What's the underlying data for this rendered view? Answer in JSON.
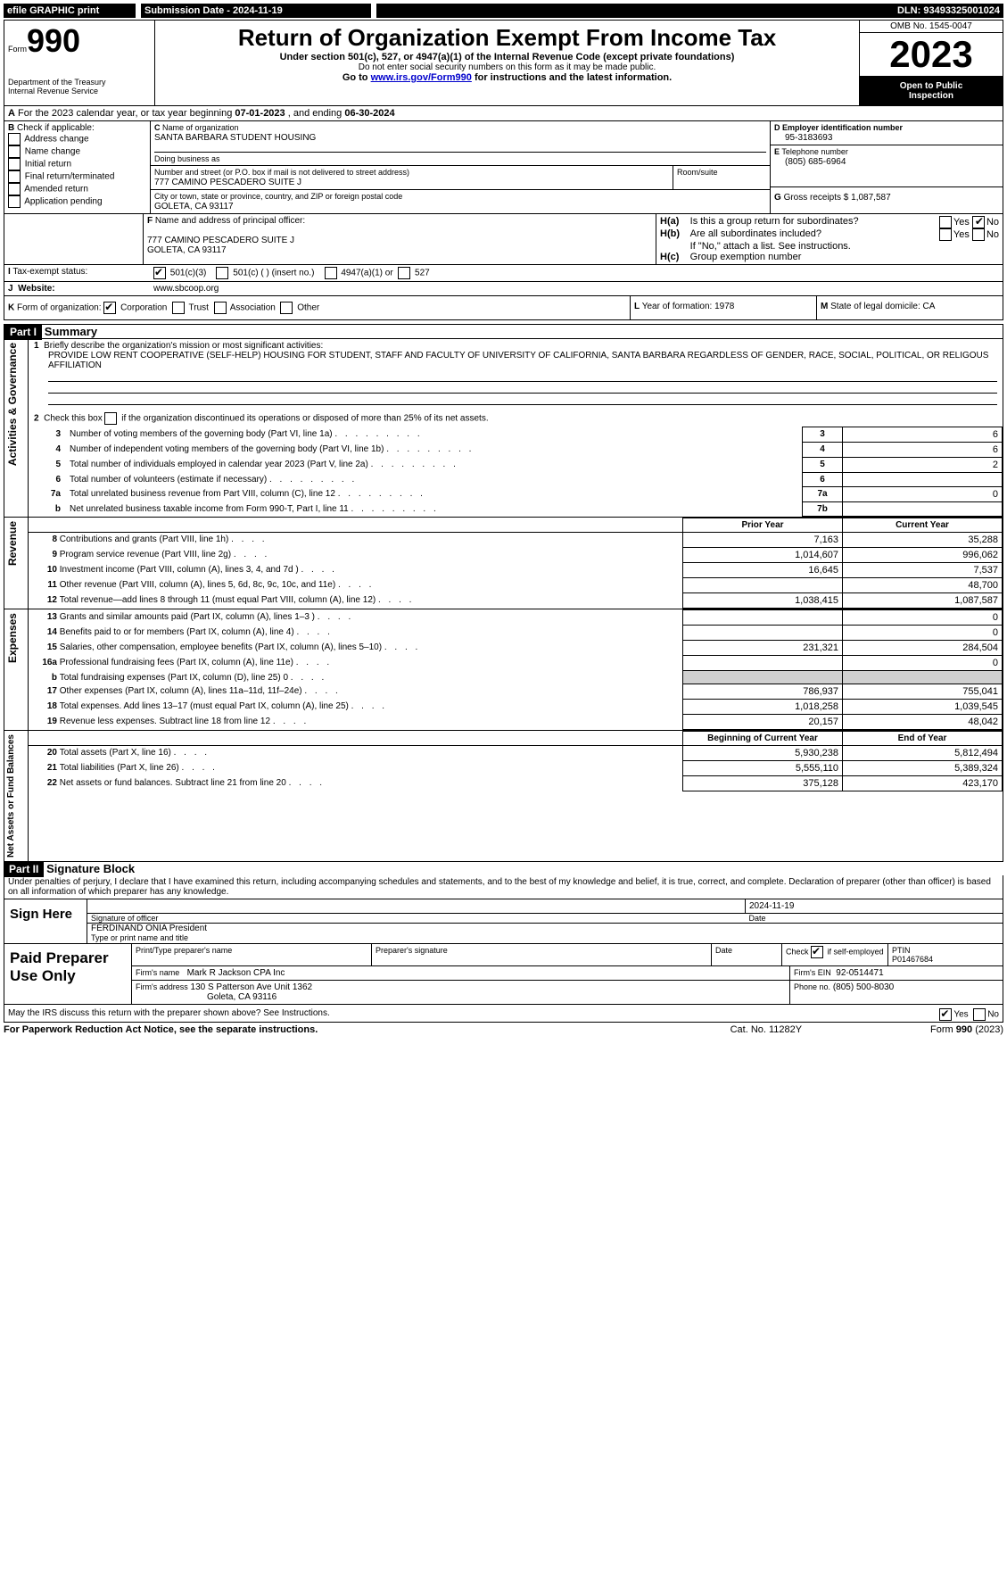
{
  "topbar": {
    "efile": "efile GRAPHIC print",
    "subdate_label": "Submission Date - ",
    "subdate": "2024-11-19",
    "dln_label": "DLN: ",
    "dln": "93493325001024"
  },
  "header": {
    "form_label": "Form",
    "form_num": "990",
    "dept": "Department of the Treasury",
    "irs": "Internal Revenue Service",
    "title": "Return of Organization Exempt From Income Tax",
    "sub1": "Under section 501(c), 527, or 4947(a)(1) of the Internal Revenue Code (except private foundations)",
    "sub2": "Do not enter social security numbers on this form as it may be made public.",
    "sub3_pre": "Go to ",
    "sub3_link": "www.irs.gov/Form990",
    "sub3_post": " for instructions and the latest information.",
    "omb": "OMB No. 1545-0047",
    "year": "2023",
    "open1": "Open to Public",
    "open2": "Inspection"
  },
  "A": {
    "text": "For the 2023 calendar year, or tax year beginning ",
    "begin": "07-01-2023",
    "mid": " , and ending ",
    "end": "06-30-2024"
  },
  "B": {
    "label": "Check if applicable:",
    "opts": [
      "Address change",
      "Name change",
      "Initial return",
      "Final return/terminated",
      "Amended return",
      "Application pending"
    ]
  },
  "C": {
    "name_lbl": "Name of organization",
    "name": "SANTA BARBARA STUDENT HOUSING",
    "dba_lbl": "Doing business as",
    "addr_lbl": "Number and street (or P.O. box if mail is not delivered to street address)",
    "room_lbl": "Room/suite",
    "addr": "777 CAMINO PESCADERO SUITE J",
    "city_lbl": "City or town, state or province, country, and ZIP or foreign postal code",
    "city": "GOLETA, CA  93117"
  },
  "D": {
    "lbl": "Employer identification number",
    "val": "95-3183693"
  },
  "E": {
    "lbl": "Telephone number",
    "val": "(805) 685-6964"
  },
  "G": {
    "lbl": "Gross receipts $",
    "val": "1,087,587"
  },
  "F": {
    "lbl": "Name and address of principal officer:",
    "addr1": "777 CAMINO PESCADERO SUITE J",
    "addr2": "GOLETA, CA  93117"
  },
  "H": {
    "a": "Is this a group return for subordinates?",
    "b": "Are all subordinates included?",
    "b2": "If \"No,\" attach a list. See instructions.",
    "c": "Group exemption number",
    "yes": "Yes",
    "no": "No"
  },
  "I": {
    "lbl": "Tax-exempt status:",
    "o1": "501(c)(3)",
    "o2": "501(c) (  ) (insert no.)",
    "o3": "4947(a)(1) or",
    "o4": "527"
  },
  "J": {
    "lbl": "Website:",
    "val": "www.sbcoop.org"
  },
  "K": {
    "lbl": "Form of organization:",
    "o1": "Corporation",
    "o2": "Trust",
    "o3": "Association",
    "o4": "Other"
  },
  "L": {
    "lbl": "Year of formation:",
    "val": "1978"
  },
  "M": {
    "lbl": "State of legal domicile:",
    "val": "CA"
  },
  "part1": {
    "hdr": "Part I",
    "title": "Summary",
    "l1_lbl": "Briefly describe the organization's mission or most significant activities:",
    "l1": "PROVIDE LOW RENT COOPERATIVE (SELF-HELP) HOUSING FOR STUDENT, STAFF AND FACULTY OF UNIVERSITY OF CALIFORNIA, SANTA BARBARA REGARDLESS OF GENDER, RACE, SOCIAL, POLITICAL, OR RELIGOUS AFFILIATION",
    "l2": "Check this box      if the organization discontinued its operations or disposed of more than 25% of its net assets.",
    "rows_gov": [
      {
        "n": "3",
        "t": "Number of voting members of the governing body (Part VI, line 1a)",
        "b": "3",
        "v": "6"
      },
      {
        "n": "4",
        "t": "Number of independent voting members of the governing body (Part VI, line 1b)",
        "b": "4",
        "v": "6"
      },
      {
        "n": "5",
        "t": "Total number of individuals employed in calendar year 2023 (Part V, line 2a)",
        "b": "5",
        "v": "2"
      },
      {
        "n": "6",
        "t": "Total number of volunteers (estimate if necessary)",
        "b": "6",
        "v": ""
      },
      {
        "n": "7a",
        "t": "Total unrelated business revenue from Part VIII, column (C), line 12",
        "b": "7a",
        "v": "0"
      },
      {
        "n": "b",
        "t": "Net unrelated business taxable income from Form 990-T, Part I, line 11",
        "b": "7b",
        "v": ""
      }
    ],
    "col_prior": "Prior Year",
    "col_curr": "Current Year",
    "rev_rows": [
      {
        "n": "8",
        "t": "Contributions and grants (Part VIII, line 1h)",
        "p": "7,163",
        "c": "35,288"
      },
      {
        "n": "9",
        "t": "Program service revenue (Part VIII, line 2g)",
        "p": "1,014,607",
        "c": "996,062"
      },
      {
        "n": "10",
        "t": "Investment income (Part VIII, column (A), lines 3, 4, and 7d )",
        "p": "16,645",
        "c": "7,537"
      },
      {
        "n": "11",
        "t": "Other revenue (Part VIII, column (A), lines 5, 6d, 8c, 9c, 10c, and 11e)",
        "p": "",
        "c": "48,700"
      },
      {
        "n": "12",
        "t": "Total revenue—add lines 8 through 11 (must equal Part VIII, column (A), line 12)",
        "p": "1,038,415",
        "c": "1,087,587"
      }
    ],
    "exp_rows": [
      {
        "n": "13",
        "t": "Grants and similar amounts paid (Part IX, column (A), lines 1–3 )",
        "p": "",
        "c": "0"
      },
      {
        "n": "14",
        "t": "Benefits paid to or for members (Part IX, column (A), line 4)",
        "p": "",
        "c": "0"
      },
      {
        "n": "15",
        "t": "Salaries, other compensation, employee benefits (Part IX, column (A), lines 5–10)",
        "p": "231,321",
        "c": "284,504"
      },
      {
        "n": "16a",
        "t": "Professional fundraising fees (Part IX, column (A), line 11e)",
        "p": "",
        "c": "0"
      },
      {
        "n": "b",
        "t": "Total fundraising expenses (Part IX, column (D), line 25) 0",
        "p": "SHADE",
        "c": "SHADE"
      },
      {
        "n": "17",
        "t": "Other expenses (Part IX, column (A), lines 11a–11d, 11f–24e)",
        "p": "786,937",
        "c": "755,041"
      },
      {
        "n": "18",
        "t": "Total expenses. Add lines 13–17 (must equal Part IX, column (A), line 25)",
        "p": "1,018,258",
        "c": "1,039,545"
      },
      {
        "n": "19",
        "t": "Revenue less expenses. Subtract line 18 from line 12",
        "p": "20,157",
        "c": "48,042"
      }
    ],
    "col_begin": "Beginning of Current Year",
    "col_end": "End of Year",
    "net_rows": [
      {
        "n": "20",
        "t": "Total assets (Part X, line 16)",
        "p": "5,930,238",
        "c": "5,812,494"
      },
      {
        "n": "21",
        "t": "Total liabilities (Part X, line 26)",
        "p": "5,555,110",
        "c": "5,389,324"
      },
      {
        "n": "22",
        "t": "Net assets or fund balances. Subtract line 21 from line 20",
        "p": "375,128",
        "c": "423,170"
      }
    ],
    "side_gov": "Activities & Governance",
    "side_rev": "Revenue",
    "side_exp": "Expenses",
    "side_net": "Net Assets or Fund Balances"
  },
  "part2": {
    "hdr": "Part II",
    "title": "Signature Block",
    "decl": "Under penalties of perjury, I declare that I have examined this return, including accompanying schedules and statements, and to the best of my knowledge and belief, it is true, correct, and complete. Declaration of preparer (other than officer) is based on all information of which preparer has any knowledge.",
    "sign_here": "Sign Here",
    "sig_lbl": "Signature of officer",
    "date_lbl": "Date",
    "sig_date": "2024-11-19",
    "officer": "FERDINAND ONIA President",
    "type_lbl": "Type or print name and title",
    "paid": "Paid Preparer Use Only",
    "prep_name_lbl": "Print/Type preparer's name",
    "prep_sig_lbl": "Preparer's signature",
    "check_lbl": "Check",
    "self_emp": "if self-employed",
    "ptin_lbl": "PTIN",
    "ptin": "P01467684",
    "firm_name_lbl": "Firm's name",
    "firm_name": "Mark R Jackson CPA Inc",
    "firm_ein_lbl": "Firm's EIN",
    "firm_ein": "92-0514471",
    "firm_addr_lbl": "Firm's address",
    "firm_addr1": "130 S Patterson Ave Unit 1362",
    "firm_addr2": "Goleta, CA  93116",
    "phone_lbl": "Phone no.",
    "phone": "(805) 500-8030",
    "discuss": "May the IRS discuss this return with the preparer shown above? See Instructions.",
    "yes": "Yes",
    "no": "No"
  },
  "footer": {
    "pra": "For Paperwork Reduction Act Notice, see the separate instructions.",
    "cat": "Cat. No. 11282Y",
    "form": "Form 990 (2023)"
  }
}
